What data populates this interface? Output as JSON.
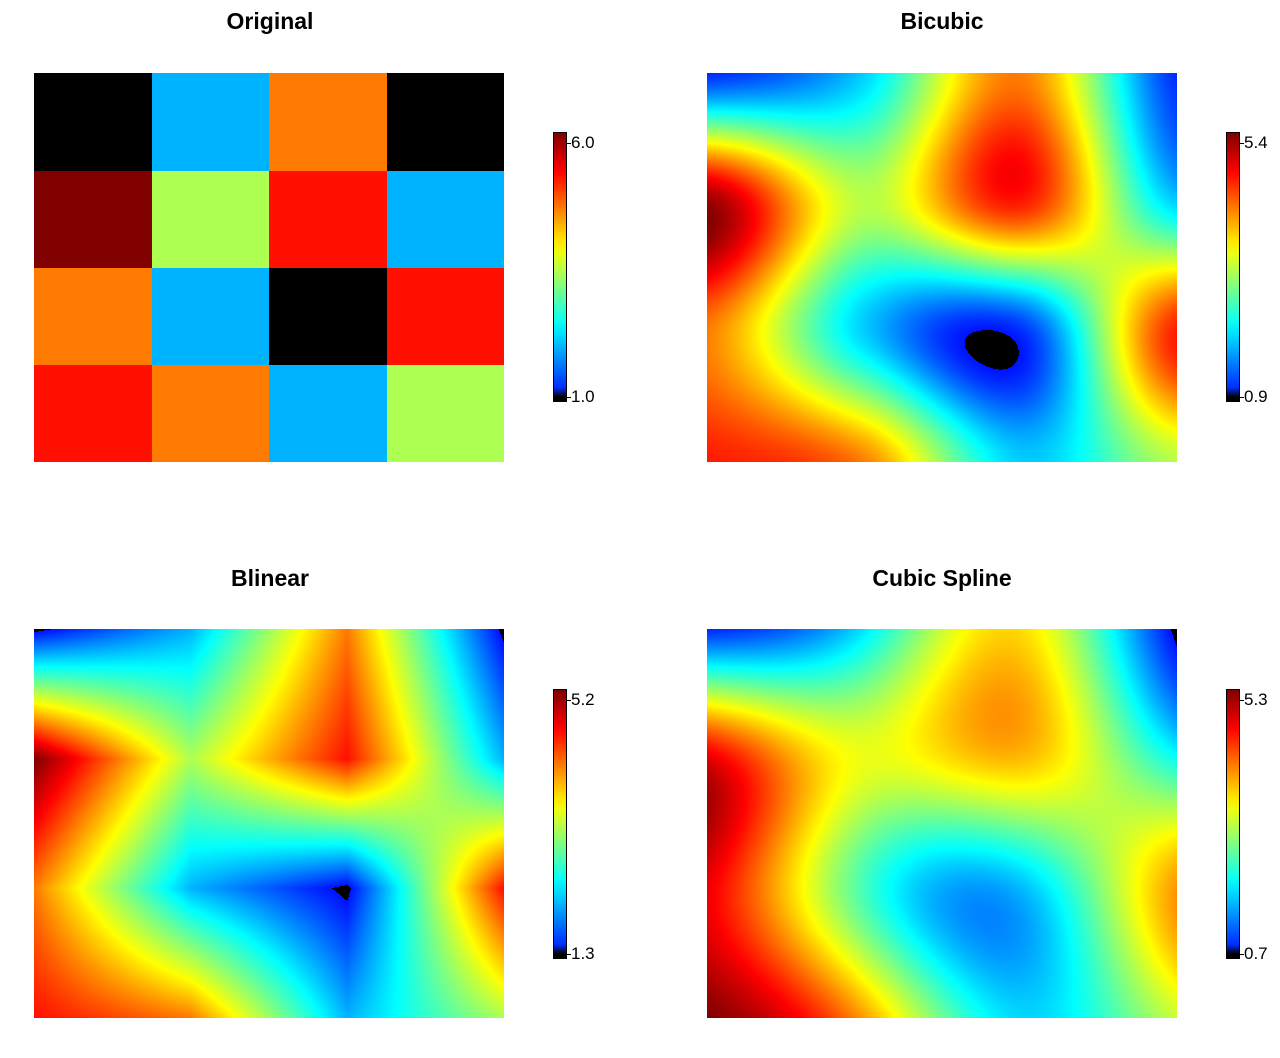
{
  "chart_data": [
    {
      "type": "heatmap",
      "title": "Original",
      "colormap": "jet",
      "grid": [
        [
          1,
          2,
          4.6,
          1
        ],
        [
          6,
          3.4,
          5.2,
          2
        ],
        [
          4.6,
          2,
          1,
          5.2
        ],
        [
          5.2,
          4.6,
          2,
          3.4
        ]
      ],
      "colorbar": {
        "min": "1.0",
        "max": "6.0"
      }
    },
    {
      "type": "heatmap",
      "title": "Bicubic",
      "colormap": "jet",
      "interpolation": "bicubic",
      "colorbar": {
        "min": "0.9",
        "max": "5.4"
      }
    },
    {
      "type": "heatmap",
      "title": "Blinear",
      "colormap": "jet",
      "interpolation": "bilinear",
      "colorbar": {
        "min": "1.3",
        "max": "5.2"
      }
    },
    {
      "type": "heatmap",
      "title": "Cubic Spline",
      "colormap": "jet",
      "interpolation": "cubic spline",
      "colorbar": {
        "min": "0.7",
        "max": "5.3"
      }
    }
  ]
}
